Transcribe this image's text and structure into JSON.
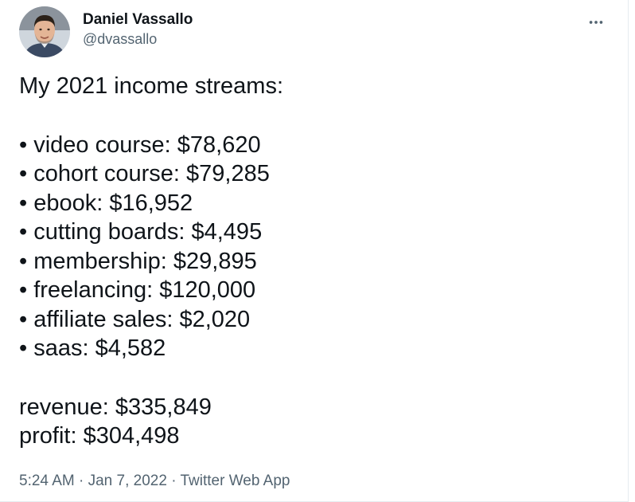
{
  "author": {
    "name": "Daniel Vassallo",
    "handle": "@dvassallo",
    "avatar_icon": "profile-photo"
  },
  "more_icon": "more-horizontal-icon",
  "tweet": {
    "intro": "My 2021 income streams:",
    "streams": [
      "• video course: $78,620",
      "• cohort course: $79,285",
      "• ebook: $16,952",
      "• cutting boards: $4,495",
      "• membership: $29,895",
      "• freelancing: $120,000",
      "• affiliate sales: $2,020",
      "• saas: $4,582"
    ],
    "revenue": "revenue: $335,849",
    "profit": "profit: $304,498"
  },
  "meta": {
    "time": "5:24 AM",
    "sep1": " · ",
    "date": "Jan 7, 2022",
    "sep2": " · ",
    "source": "Twitter Web App"
  },
  "colors": {
    "text": "#0f1419",
    "secondary": "#536471",
    "border": "#e6ecf0"
  }
}
